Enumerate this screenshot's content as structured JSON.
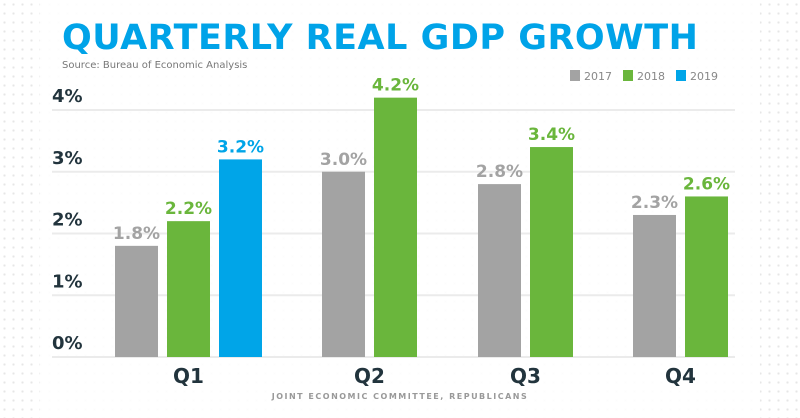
{
  "chart_data": {
    "type": "bar",
    "title": "QUARTERLY REAL GDP GROWTH",
    "subtitle": "Source: Bureau of Economic Analysis",
    "footer": "JOINT ECONOMIC COMMITTEE, REPUBLICANS",
    "categories": [
      "Q1",
      "Q2",
      "Q3",
      "Q4"
    ],
    "series": [
      {
        "name": "2017",
        "color": "#a3a3a3",
        "values": [
          1.8,
          3.0,
          2.8,
          2.3
        ],
        "labels": [
          "1.8%",
          "3.0%",
          "2.8%",
          "2.3%"
        ]
      },
      {
        "name": "2018",
        "color": "#6ab63c",
        "values": [
          2.2,
          4.2,
          3.4,
          2.6
        ],
        "labels": [
          "2.2%",
          "4.2%",
          "3.4%",
          "2.6%"
        ]
      },
      {
        "name": "2019",
        "color": "#00a5e8",
        "values": [
          3.2,
          null,
          null,
          null
        ],
        "labels": [
          "3.2%",
          null,
          null,
          null
        ]
      }
    ],
    "yticks": [
      "0%",
      "1%",
      "2%",
      "3%",
      "4%"
    ],
    "ylim": [
      0,
      4
    ],
    "xlabel": "",
    "ylabel": "",
    "grid": true,
    "legend": "top-right"
  }
}
